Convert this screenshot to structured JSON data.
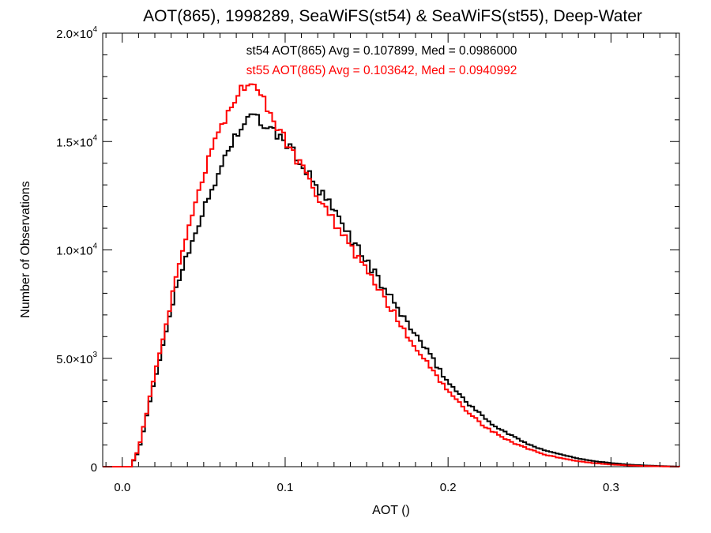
{
  "chart_data": {
    "type": "line",
    "step": true,
    "title": "AOT(865), 1998289, SeaWiFS(st54) & SeaWiFS(st55), Deep-Water",
    "xlabel": "AOT ()",
    "ylabel": "Number of Observations",
    "xlim": [
      -0.012,
      0.342
    ],
    "ylim": [
      0,
      20000
    ],
    "xticks": [
      {
        "value": 0.0,
        "label": "0.0"
      },
      {
        "value": 0.1,
        "label": "0.1"
      },
      {
        "value": 0.2,
        "label": "0.2"
      },
      {
        "value": 0.3,
        "label": "0.3"
      }
    ],
    "yticks": [
      {
        "value": 0,
        "mant": "0",
        "exp": ""
      },
      {
        "value": 5000,
        "mant": "5.0×10",
        "exp": "3"
      },
      {
        "value": 10000,
        "mant": "1.0×10",
        "exp": "4"
      },
      {
        "value": 15000,
        "mant": "1.5×10",
        "exp": "4"
      },
      {
        "value": 20000,
        "mant": "2.0×10",
        "exp": "4"
      }
    ],
    "annotations": [
      {
        "text": "st54 AOT(865) Avg = 0.107899, Med = 0.0986000",
        "color": "#000000"
      },
      {
        "text": "st55 AOT(865) Avg = 0.103642, Med = 0.0940992",
        "color": "#ff0000"
      }
    ],
    "series": [
      {
        "color": "#000000",
        "x": [
          0.0,
          0.005,
          0.01,
          0.015,
          0.02,
          0.025,
          0.03,
          0.035,
          0.04,
          0.045,
          0.05,
          0.055,
          0.06,
          0.065,
          0.07,
          0.075,
          0.08,
          0.085,
          0.09,
          0.1,
          0.11,
          0.12,
          0.13,
          0.14,
          0.15,
          0.16,
          0.17,
          0.18,
          0.19,
          0.2,
          0.21,
          0.22,
          0.23,
          0.24,
          0.25,
          0.26,
          0.27,
          0.28,
          0.29,
          0.3,
          0.31,
          0.32,
          0.33,
          0.342
        ],
        "y": [
          0,
          0,
          700,
          2300,
          4000,
          5600,
          7300,
          8700,
          9900,
          10900,
          11800,
          12700,
          13700,
          14700,
          15300,
          15800,
          16200,
          15900,
          15600,
          15000,
          14000,
          12800,
          11800,
          10600,
          9500,
          8300,
          7200,
          6100,
          5000,
          3900,
          3100,
          2400,
          1800,
          1400,
          1000,
          750,
          550,
          380,
          250,
          170,
          100,
          60,
          30,
          0
        ]
      },
      {
        "color": "#ff0000",
        "x": [
          0.0,
          0.005,
          0.01,
          0.015,
          0.02,
          0.025,
          0.03,
          0.035,
          0.04,
          0.045,
          0.05,
          0.055,
          0.06,
          0.065,
          0.07,
          0.075,
          0.08,
          0.085,
          0.09,
          0.1,
          0.11,
          0.12,
          0.13,
          0.14,
          0.15,
          0.16,
          0.17,
          0.18,
          0.19,
          0.2,
          0.21,
          0.22,
          0.23,
          0.24,
          0.25,
          0.26,
          0.27,
          0.28,
          0.29,
          0.3,
          0.31,
          0.32,
          0.33,
          0.342
        ],
        "y": [
          0,
          0,
          800,
          2500,
          4300,
          5900,
          7600,
          9200,
          10700,
          12100,
          13400,
          14600,
          15600,
          16400,
          17100,
          17600,
          17900,
          17200,
          16300,
          15100,
          13800,
          12500,
          11300,
          10100,
          9000,
          7900,
          6700,
          5500,
          4500,
          3500,
          2700,
          2000,
          1500,
          1100,
          800,
          550,
          380,
          250,
          160,
          100,
          60,
          30,
          15,
          0
        ]
      }
    ]
  }
}
